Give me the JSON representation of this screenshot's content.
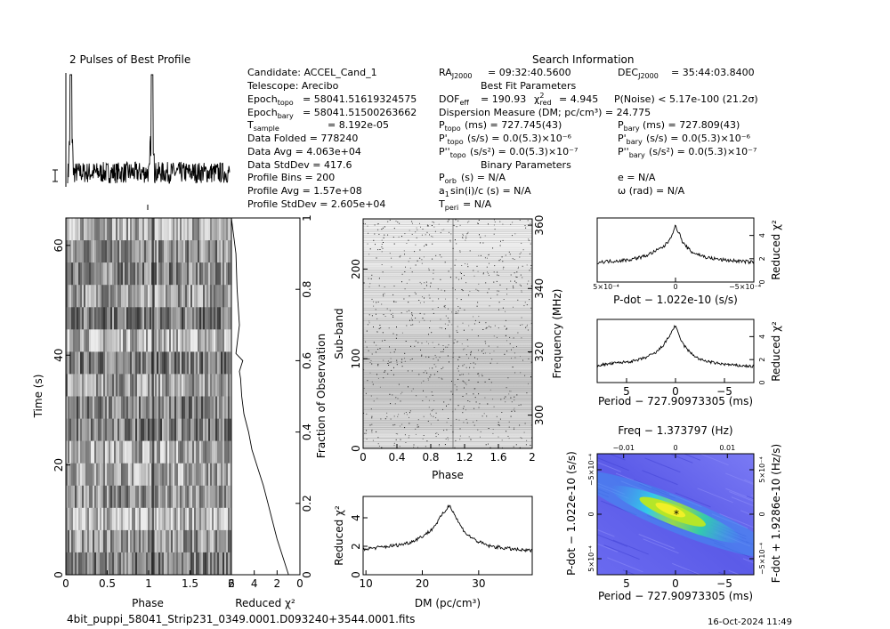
{
  "filename": "4bit_puppi_58041_Strip231_0349.0001.D093240+3544.0001.fits",
  "date": "16-Oct-2024 11:49",
  "profile_title": "2 Pulses of Best Profile",
  "info": {
    "search_title": "Search Information",
    "best_fit_title": "Best Fit Parameters",
    "binary_title": "Binary Parameters",
    "candidate": "Candidate:  ACCEL_Cand_1",
    "telescope": "Telescope:  Arecibo",
    "epoch_topo": "= 58041.51619324575",
    "epoch_bary": "= 58041.51500263662",
    "tsample": "=  8.192e-05",
    "data_folded": "Data Folded      =  778240",
    "data_avg": "Data Avg          =  4.063e+04",
    "data_std": "Data StdDev     =  417.6",
    "profile_bins": "Profile Bins      =  200",
    "profile_avg": "Profile Avg       =  1.57e+08",
    "profile_std": "Profile StdDev   =  2.605e+04",
    "ra": "= 09:32:40.5600",
    "dec": "= 35:44:03.8400",
    "dof": "= 190.93",
    "chi2": "= 4.945",
    "pnoise": "P(Noise) < 5.17e-100   (21.2σ)",
    "dm": "Dispersion Measure (DM; pc/cm³) = 24.775",
    "ptopo": "(ms)  =  727.745(43)",
    "pbary": "(ms)  =  727.809(43)",
    "pdot_topo": "(s/s) = 0.0(5.3)×10⁻⁶",
    "pdot_bary": "(s/s) = 0.0(5.3)×10⁻⁶",
    "pddot_topo": "(s/s²) = 0.0(5.3)×10⁻⁷",
    "pddot_bary": "(s/s²) = 0.0(5.3)×10⁻⁷",
    "porb": "(s) = N/A",
    "ecc": "e = N/A",
    "asini": "sin(i)/c (s) = N/A",
    "omega": "ω (rad) = N/A",
    "tperi": "= N/A"
  },
  "chart_data": [
    {
      "name": "time_vs_phase",
      "type": "heatmap",
      "xlabel": "Phase",
      "ylabel": "Time (s)",
      "xlim": [
        0,
        2
      ],
      "ylim": [
        0,
        65
      ],
      "x_ticks": [
        "0",
        "0.5",
        "1",
        "1.5",
        "2"
      ],
      "y_ticks": [
        "0",
        "20",
        "40",
        "60"
      ],
      "pulse_phase": 1.05
    },
    {
      "name": "reduced_chi2_vs_time",
      "type": "line",
      "xlabel": "Reduced χ²",
      "ylabel": "Fraction of Observation",
      "xlim": [
        6,
        0
      ],
      "ylim": [
        0,
        1
      ],
      "x_ticks": [
        "6",
        "4",
        "2",
        "0"
      ],
      "y_ticks": [
        "0",
        "0.2",
        "0.4",
        "0.6",
        "0.8",
        "1"
      ],
      "x": [
        1.0,
        1.5,
        2.0,
        2.4,
        2.8,
        3.2,
        3.7,
        4.2,
        4.5,
        4.9,
        5.1,
        5.2,
        5.3,
        5.0,
        5.6,
        5.3,
        5.5,
        5.6,
        6.0
      ],
      "y": [
        0.0,
        0.05,
        0.1,
        0.15,
        0.2,
        0.25,
        0.3,
        0.35,
        0.4,
        0.45,
        0.5,
        0.55,
        0.57,
        0.6,
        0.62,
        0.7,
        0.8,
        0.9,
        1.0
      ]
    },
    {
      "name": "subband_vs_phase",
      "type": "heatmap",
      "xlabel": "Phase",
      "ylabel": "Sub-band",
      "y2label": "Frequency (MHz)",
      "xlim": [
        0,
        2
      ],
      "ylim": [
        0,
        256
      ],
      "x_ticks": [
        "0",
        "0.4",
        "0.8",
        "1.2",
        "1.6",
        "2"
      ],
      "y_ticks": [
        "0",
        "100",
        "200"
      ],
      "y2_ticks": [
        "300",
        "320",
        "340",
        "360"
      ]
    },
    {
      "name": "reduced_chi2_vs_dm",
      "type": "line",
      "xlabel": "DM (pc/cm³)",
      "ylabel": "Reduced χ²",
      "xlim": [
        9.5,
        39.5
      ],
      "ylim": [
        0,
        5.5
      ],
      "x_ticks": [
        "10",
        "20",
        "30"
      ],
      "y_ticks": [
        "0",
        "2",
        "4"
      ],
      "x": [
        9.5,
        12,
        14,
        16,
        18,
        20,
        21.5,
        22.5,
        23.5,
        24.3,
        24.775,
        25.3,
        26,
        27,
        28,
        30,
        32,
        34,
        36,
        38,
        39.5
      ],
      "y": [
        1.8,
        1.9,
        2.0,
        2.1,
        2.3,
        2.7,
        3.1,
        3.6,
        4.2,
        4.6,
        4.9,
        4.6,
        4.0,
        3.3,
        2.8,
        2.3,
        2.0,
        1.9,
        1.8,
        1.7,
        1.7
      ]
    },
    {
      "name": "reduced_chi2_vs_pdot",
      "type": "line",
      "xlabel": "P-dot − 1.022e-10 (s/s)",
      "ylabel": "Reduced χ²",
      "xlim": [
        0.0005,
        -0.0005
      ],
      "ylim": [
        0,
        5.5
      ],
      "x_ticks": [
        "5×10⁻⁴",
        "0",
        "−5×10⁻⁴"
      ],
      "y_ticks": [
        "0",
        "2",
        "4"
      ],
      "x": [
        0.0005,
        0.0004,
        0.0003,
        0.0002,
        0.00012,
        7e-05,
        4e-05,
        2e-05,
        0.0,
        -2e-05,
        -5e-05,
        -0.0001,
        -0.0002,
        -0.0003,
        -0.0004,
        -0.0005
      ],
      "y": [
        1.7,
        1.8,
        1.9,
        2.2,
        2.7,
        3.1,
        3.6,
        4.2,
        4.8,
        4.3,
        3.3,
        2.6,
        2.1,
        1.9,
        1.8,
        1.7
      ]
    },
    {
      "name": "reduced_chi2_vs_period",
      "type": "line",
      "xlabel": "Period − 727.90973305 (ms)",
      "ylabel": "Reduced χ²",
      "xlim": [
        8,
        -8
      ],
      "ylim": [
        0,
        5.5
      ],
      "x_ticks": [
        "5",
        "0",
        "−5"
      ],
      "y_ticks": [
        "0",
        "2",
        "4"
      ],
      "x": [
        8,
        6,
        4,
        3,
        2,
        1.3,
        0.8,
        0.4,
        0.1,
        0,
        -0.3,
        -0.8,
        -1.5,
        -2.5,
        -4,
        -6,
        -8
      ],
      "y": [
        1.5,
        1.7,
        1.9,
        2.2,
        2.6,
        3.2,
        3.8,
        4.4,
        4.9,
        4.9,
        4.2,
        3.3,
        2.6,
        2.0,
        1.7,
        1.5,
        1.4
      ]
    },
    {
      "name": "pdot_vs_period",
      "type": "heatmap",
      "xlabel": "Period − 727.90973305 (ms)",
      "ylabel": "P-dot − 1.022e-10 (s/s)",
      "top_label": "Freq − 1.373797 (Hz)",
      "right_label": "F-dot + 1.9286e-10 (Hz/s)",
      "x_ticks": [
        "5",
        "0",
        "−5"
      ],
      "y_ticks": [
        "−5×10⁻⁴",
        "0",
        "5×10⁻⁴"
      ],
      "top_ticks": [
        "−0.01",
        "0",
        "0.01"
      ],
      "right_ticks": [
        "5×10⁻⁴",
        "0",
        "−5×10⁻⁴"
      ]
    }
  ]
}
